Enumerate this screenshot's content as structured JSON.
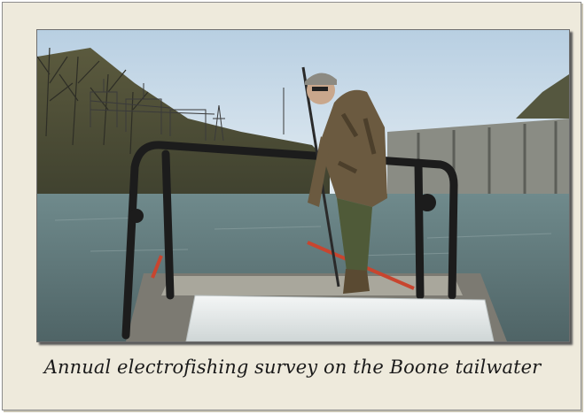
{
  "photo": {
    "subject": "person-on-boat-with-electrofishing-pole-icon"
  },
  "caption": {
    "text": "Annual electrofishing survey on the Boone tailwater"
  },
  "colors": {
    "card_background": "#eeeadc",
    "sky": "#cfdde8",
    "water": "#5d7478",
    "camouflage": "#6b5a40",
    "boat_white": "#e8ecec"
  }
}
